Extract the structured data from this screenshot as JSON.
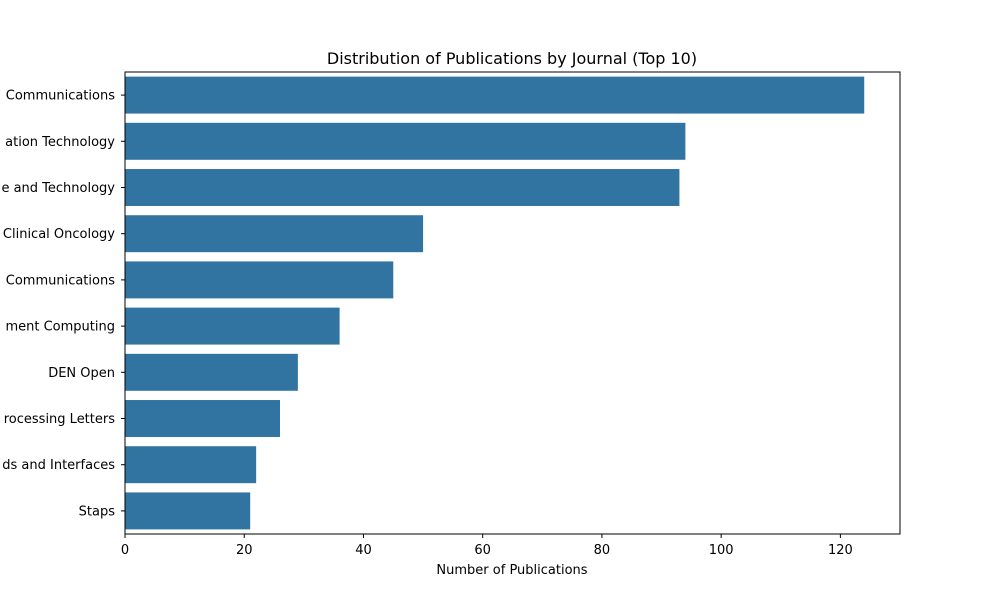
{
  "chart_data": {
    "type": "bar",
    "orientation": "horizontal",
    "title": "Distribution of Publications by Journal (Top 10)",
    "xlabel": "Number of Publications",
    "ylabel": "",
    "xlim": [
      0,
      130
    ],
    "x_ticks": [
      0,
      20,
      40,
      60,
      80,
      100,
      120
    ],
    "grid": false,
    "bar_color": "#3274a1",
    "categories": [
      "Communications",
      "ation Technology",
      "e and Technology",
      "Clinical Oncology",
      "Communications",
      "ment Computing",
      "DEN Open",
      "rocessing Letters",
      "ds and Interfaces",
      "Staps"
    ],
    "values": [
      124,
      94,
      93,
      50,
      45,
      36,
      29,
      26,
      22,
      21
    ]
  }
}
